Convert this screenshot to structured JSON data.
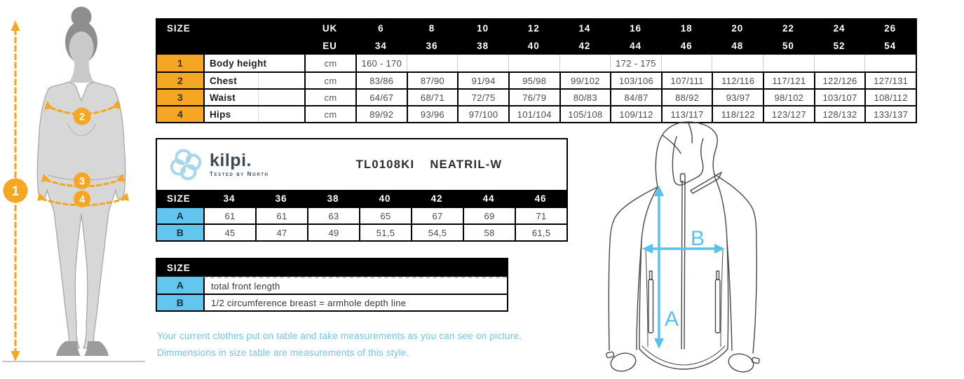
{
  "colors": {
    "orange": "#F5A623",
    "table_blue": "#62C6EF",
    "arrow_blue": "#56C2EE",
    "note_blue": "#6FC5EA",
    "logo_blue": "#A9D7EA",
    "header_black": "#000000"
  },
  "top_table": {
    "size_label": "SIZE",
    "uk_label": "UK",
    "eu_label": "EU",
    "uk_sizes": [
      "6",
      "8",
      "10",
      "12",
      "14",
      "16",
      "18",
      "20",
      "22",
      "24",
      "26"
    ],
    "eu_sizes": [
      "34",
      "36",
      "38",
      "40",
      "42",
      "44",
      "46",
      "48",
      "50",
      "52",
      "54"
    ],
    "rows": [
      {
        "num": "1",
        "label": "Body height",
        "unit": "cm",
        "values": [
          "160 - 170",
          "",
          "",
          "",
          "",
          "172 - 175",
          "",
          "",
          "",
          "",
          ""
        ]
      },
      {
        "num": "2",
        "label": "Chest",
        "unit": "cm",
        "values": [
          "83/86",
          "87/90",
          "91/94",
          "95/98",
          "99/102",
          "103/106",
          "107/111",
          "112/116",
          "117/121",
          "122/126",
          "127/131"
        ]
      },
      {
        "num": "3",
        "label": "Waist",
        "unit": "cm",
        "values": [
          "64/67",
          "68/71",
          "72/75",
          "76/79",
          "80/83",
          "84/87",
          "88/92",
          "93/97",
          "98/102",
          "103/107",
          "108/112"
        ]
      },
      {
        "num": "4",
        "label": "Hips",
        "unit": "cm",
        "values": [
          "89/92",
          "93/96",
          "97/100",
          "101/104",
          "105/108",
          "109/112",
          "113/117",
          "118/122",
          "123/127",
          "128/132",
          "133/137"
        ]
      }
    ]
  },
  "product_block": {
    "brand": "kilpi.",
    "tagline": "Tested by North",
    "code": "TL0108KI",
    "name": "NEATRIL-W",
    "size_label": "SIZE",
    "sizes": [
      "34",
      "36",
      "38",
      "40",
      "42",
      "44",
      "46"
    ],
    "rows": [
      {
        "key": "A",
        "values": [
          "61",
          "61",
          "63",
          "65",
          "67",
          "69",
          "71"
        ]
      },
      {
        "key": "B",
        "values": [
          "45",
          "47",
          "49",
          "51,5",
          "54,5",
          "58",
          "61,5"
        ]
      }
    ]
  },
  "legend_table": {
    "size_label": "SIZE",
    "rows": [
      {
        "key": "A",
        "description": "total front length"
      },
      {
        "key": "B",
        "description": "1/2 circumference breast = armhole depth line"
      }
    ]
  },
  "notes": {
    "line1": "Your current clothes put on table and take measurements as you can see on picture.",
    "line2": "Dimmensions in size table are measurements of this style."
  },
  "body_figure": {
    "points": {
      "height": "1",
      "chest": "2",
      "waist": "3",
      "hips": "4"
    }
  },
  "jacket_diagram": {
    "label_a": "A",
    "label_b": "B"
  }
}
